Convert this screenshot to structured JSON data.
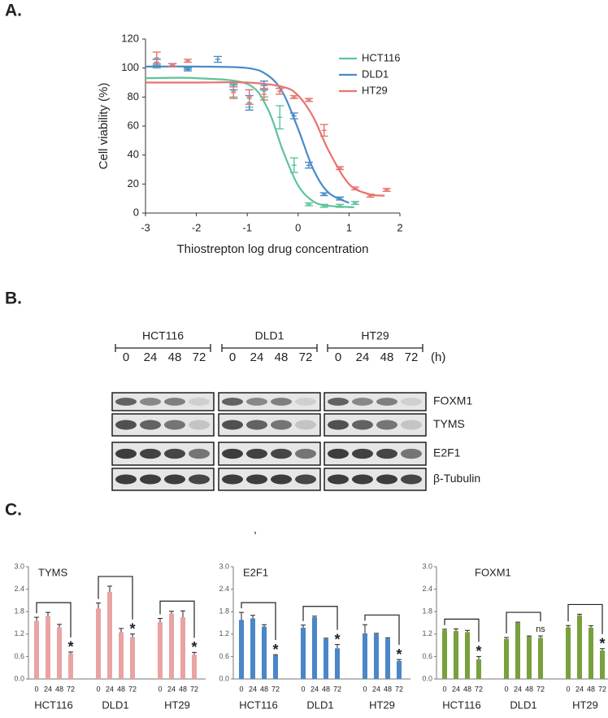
{
  "panel_labels": [
    "A.",
    "B.",
    "C."
  ],
  "stray_text": ",",
  "chart_data": [
    {
      "type": "dose-response",
      "xlabel": "Thiostrepton log drug concentration",
      "ylabel": "Cell viability (%)",
      "xlim": [
        -3,
        2
      ],
      "xticks": [
        -3,
        -2,
        -1,
        0,
        1,
        2
      ],
      "ylim": [
        0,
        120
      ],
      "yticks": [
        0,
        20,
        40,
        60,
        80,
        100,
        120
      ],
      "legend": "upper right",
      "series": [
        {
          "name": "HCT116",
          "color": "#5cc49a",
          "x": [
            -2.78,
            -2.47,
            -2.17,
            -1.27,
            -0.96,
            -0.67,
            -0.36,
            -0.08,
            0.21,
            0.51,
            0.82,
            1.12
          ],
          "values": [
            103,
            102,
            100,
            84,
            79,
            84,
            66,
            33,
            6,
            5,
            5,
            7
          ],
          "errors": [
            3,
            1,
            1,
            4,
            6,
            4,
            8,
            5,
            1,
            1,
            1,
            1
          ],
          "fit_x": [
            -3,
            -2,
            -1,
            -0.6,
            -0.3,
            0,
            0.3,
            0.6,
            1.1
          ],
          "fit_values": [
            93,
            93,
            89,
            72,
            43,
            19,
            8,
            5,
            4
          ]
        },
        {
          "name": "DLD1",
          "color": "#4a8ac9",
          "x": [
            -2.78,
            -2.47,
            -2.17,
            -1.58,
            -1.27,
            -0.96,
            -0.67,
            -0.36,
            -0.08,
            0.21,
            0.51,
            0.82
          ],
          "values": [
            104,
            102,
            99,
            106,
            87,
            76,
            88,
            84,
            67,
            33,
            13,
            10
          ],
          "errors": [
            2,
            1,
            1,
            2,
            2,
            5,
            3,
            2,
            2,
            2,
            1,
            1
          ],
          "fit_x": [
            -3,
            -2,
            -1,
            -0.6,
            -0.3,
            0,
            0.3,
            0.6,
            1.0
          ],
          "fit_values": [
            101,
            101,
            100,
            95,
            83,
            58,
            30,
            14,
            7
          ]
        },
        {
          "name": "HT29",
          "color": "#e8736f",
          "x": [
            -2.78,
            -2.47,
            -2.17,
            -1.27,
            -0.96,
            -0.67,
            -0.36,
            -0.08,
            0.21,
            0.51,
            0.82,
            1.12,
            1.42,
            1.74
          ],
          "values": [
            107,
            102,
            105,
            83,
            80,
            82,
            84,
            80,
            78,
            57,
            31,
            17,
            12,
            16
          ],
          "errors": [
            4,
            1,
            1,
            4,
            5,
            4,
            2,
            1,
            1,
            4,
            1,
            1,
            1,
            1
          ],
          "fit_x": [
            -3,
            -2,
            -1,
            -0.3,
            0,
            0.3,
            0.6,
            1.0,
            1.4,
            1.7
          ],
          "fit_values": [
            90,
            90,
            90,
            87,
            81,
            66,
            43,
            20,
            13,
            12
          ]
        }
      ]
    },
    {
      "type": "grouped-bar",
      "title": "TYMS",
      "color": "#e9a3a3",
      "ylim": [
        0,
        3
      ],
      "yticks": [
        {
          "value": 0,
          "label": "0.0"
        },
        0.6,
        1.2,
        1.8,
        2.4,
        {
          "value": 3,
          "label": "3.0"
        }
      ],
      "groups": [
        "HCT116",
        "DLD1",
        "HT29"
      ],
      "categories": [
        "0",
        "24",
        "48",
        "72",
        "0",
        "24",
        "48",
        "72",
        "0",
        "24",
        "48",
        "72"
      ],
      "values": [
        1.55,
        1.68,
        1.38,
        0.68,
        1.88,
        2.33,
        1.25,
        1.12,
        1.52,
        1.75,
        1.65,
        0.65
      ],
      "errors": [
        0.1,
        0.1,
        0.08,
        0.04,
        0.15,
        0.15,
        0.1,
        0.08,
        0.1,
        0.06,
        0.17,
        0.06
      ],
      "annotations": [
        null,
        null,
        null,
        "*",
        null,
        null,
        null,
        "*",
        null,
        null,
        null,
        "*"
      ]
    },
    {
      "type": "grouped-bar",
      "title": "E2F1",
      "color": "#4a86c8",
      "ylim": [
        0,
        3
      ],
      "yticks": [
        {
          "value": 0,
          "label": "0.0"
        },
        0.6,
        1.2,
        1.8,
        2.4,
        {
          "value": 3,
          "label": "3.0"
        }
      ],
      "groups": [
        "HCT116",
        "DLD1",
        "HT29"
      ],
      "categories": [
        "0",
        "24",
        "48",
        "72",
        "0",
        "24",
        "48",
        "72",
        "0",
        "24",
        "48",
        "72"
      ],
      "values": [
        1.58,
        1.62,
        1.4,
        0.63,
        1.37,
        1.65,
        1.07,
        0.82,
        1.22,
        1.2,
        1.08,
        0.48
      ],
      "errors": [
        0.2,
        0.08,
        0.05,
        0.02,
        0.07,
        0.03,
        0.02,
        0.1,
        0.23,
        0.02,
        0.02,
        0.04
      ],
      "annotations": [
        null,
        null,
        null,
        "*",
        null,
        null,
        null,
        "*",
        null,
        null,
        null,
        "*"
      ]
    },
    {
      "type": "grouped-bar",
      "title": "FOXM1",
      "color": "#78a03c",
      "unit": "(h)",
      "ylim": [
        0,
        3
      ],
      "yticks": [
        {
          "value": 0,
          "label": "0.0"
        },
        0.6,
        1.2,
        1.8,
        2.4,
        {
          "value": 3,
          "label": "3.0"
        }
      ],
      "groups": [
        "HCT116",
        "DLD1",
        "HT29"
      ],
      "categories": [
        "0",
        "24",
        "48",
        "72",
        "0",
        "24",
        "48",
        "72",
        "0",
        "24",
        "48",
        "72"
      ],
      "values": [
        1.3,
        1.28,
        1.25,
        0.52,
        1.07,
        1.5,
        1.13,
        1.1,
        1.38,
        1.7,
        1.37,
        0.76
      ],
      "errors": [
        0.03,
        0.06,
        0.05,
        0.08,
        0.04,
        0.02,
        0.02,
        0.05,
        0.05,
        0.03,
        0.05,
        0.05
      ],
      "annotations": [
        null,
        null,
        null,
        "*",
        null,
        null,
        null,
        "ns",
        null,
        null,
        null,
        "*"
      ]
    }
  ],
  "blot": {
    "groups": [
      "HCT116",
      "DLD1",
      "HT29"
    ],
    "times": [
      "0",
      "24",
      "48",
      "72"
    ],
    "unit": "(h)",
    "rows": [
      "FOXM1",
      "TYMS",
      "E2F1",
      "β-Tubulin"
    ]
  }
}
